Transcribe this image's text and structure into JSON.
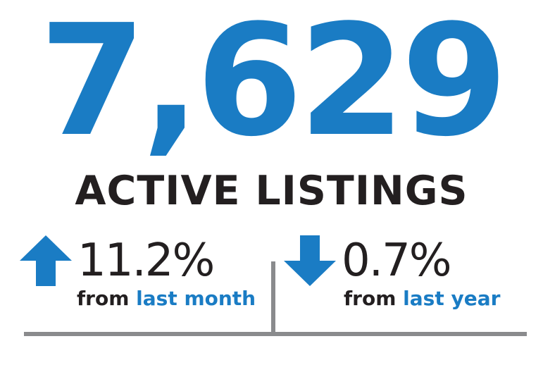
{
  "headline": {
    "value": "7,629",
    "label": "ACTIVE LISTINGS"
  },
  "stats": {
    "month": {
      "direction": "up",
      "icon": "arrow-up-icon",
      "value": "11.2%",
      "caption_prefix": "from",
      "caption_highlight": "last month"
    },
    "year": {
      "direction": "down",
      "icon": "arrow-down-icon",
      "value": "0.7%",
      "caption_prefix": "from",
      "caption_highlight": "last year"
    }
  },
  "colors": {
    "accent": "#1a7cc4",
    "text": "#231f20",
    "rule": "#8a8b8d"
  }
}
